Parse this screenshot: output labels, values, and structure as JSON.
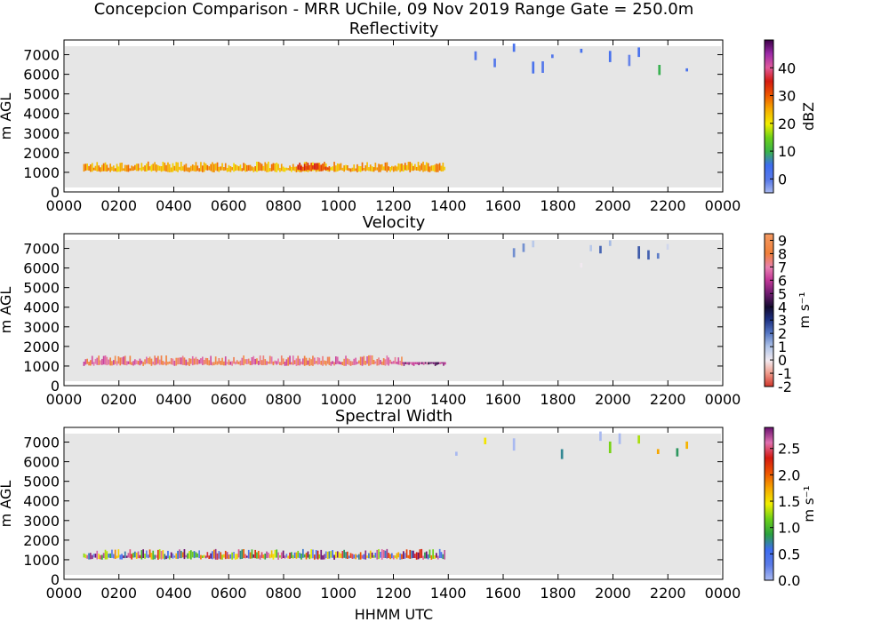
{
  "figure": {
    "title": "Concepcion Comparison - MRR UChile, 09 Nov 2019 Range Gate = 250.0m",
    "xlabel": "HHMM UTC"
  },
  "chart_data": [
    {
      "type": "heatmap",
      "title": "Reflectivity",
      "ylabel": "m AGL",
      "xticks": [
        "0000",
        "0200",
        "0400",
        "0600",
        "0800",
        "1000",
        "1200",
        "1400",
        "1600",
        "1800",
        "2000",
        "2200",
        "0000"
      ],
      "yticks": [
        0,
        1000,
        2000,
        3000,
        4000,
        5000,
        6000,
        7000
      ],
      "xlim_hours": [
        0,
        24
      ],
      "ylim": [
        0,
        7750
      ],
      "colorbar": {
        "label": "dBZ",
        "ticks": [
          "0",
          "10",
          "20",
          "30",
          "40"
        ],
        "range": [
          -5,
          50
        ]
      },
      "background": "#e6e6e6",
      "features": [
        {
          "name": "low layer",
          "x": [
            0.7,
            13.9
          ],
          "y": [
            1000,
            1500
          ],
          "value": 25
        },
        {
          "name": "low layer peak",
          "x": [
            8.5,
            9.7
          ],
          "y": [
            1050,
            1450
          ],
          "value": 32
        },
        {
          "name": "upper echoes",
          "x": [
            13.9,
            23.0
          ],
          "y": [
            6000,
            7750
          ],
          "value": 2
        },
        {
          "name": "upper echo 2140",
          "x": [
            21.65,
            21.85
          ],
          "y": [
            5700,
            7500
          ],
          "value": 10
        }
      ]
    },
    {
      "type": "heatmap",
      "title": "Velocity",
      "ylabel": "m s⁻¹",
      "ylabel_axis": "m AGL",
      "xticks": [
        "0000",
        "0200",
        "0400",
        "0600",
        "0800",
        "1000",
        "1200",
        "1400",
        "1600",
        "1800",
        "2000",
        "2200",
        "0000"
      ],
      "yticks": [
        0,
        1000,
        2000,
        3000,
        4000,
        5000,
        6000,
        7000
      ],
      "xlim_hours": [
        0,
        24
      ],
      "ylim": [
        0,
        7750
      ],
      "colorbar": {
        "label": "m s⁻¹",
        "ticks": [
          "-2",
          "-1",
          "0",
          "1",
          "2",
          "3",
          "4",
          "5",
          "6",
          "7",
          "8",
          "9"
        ],
        "range": [
          -2,
          9.5
        ]
      },
      "background": "#e6e6e6",
      "features": [
        {
          "name": "low layer",
          "x": [
            0.7,
            12.3
          ],
          "y": [
            1000,
            1500
          ],
          "value": 7.5
        },
        {
          "name": "low layer tail",
          "x": [
            12.3,
            13.9
          ],
          "y": [
            1000,
            1150
          ],
          "value": 5.5
        },
        {
          "name": "upper echoes",
          "x": [
            13.9,
            23.0
          ],
          "y": [
            6000,
            7750
          ],
          "value": 1.5
        }
      ]
    },
    {
      "type": "heatmap",
      "title": "Spectral Width",
      "ylabel": "m s⁻¹",
      "ylabel_axis": "m AGL",
      "xticks": [
        "0000",
        "0200",
        "0400",
        "0600",
        "0800",
        "1000",
        "1200",
        "1400",
        "1600",
        "1800",
        "2000",
        "2200",
        "0000"
      ],
      "yticks": [
        0,
        1000,
        2000,
        3000,
        4000,
        5000,
        6000,
        7000
      ],
      "xlim_hours": [
        0,
        24
      ],
      "ylim": [
        0,
        7750
      ],
      "colorbar": {
        "label": "m s⁻¹",
        "ticks": [
          "0.0",
          "0.5",
          "1.0",
          "1.5",
          "2.0",
          "2.5"
        ],
        "range": [
          0,
          2.9
        ]
      },
      "background": "#e6e6e6",
      "features": [
        {
          "name": "low layer",
          "x": [
            0.7,
            13.9
          ],
          "y": [
            1000,
            1500
          ],
          "value": 1.7
        },
        {
          "name": "upper echoes",
          "x": [
            13.9,
            23.0
          ],
          "y": [
            6000,
            7750
          ],
          "value": 0.4
        }
      ]
    }
  ]
}
